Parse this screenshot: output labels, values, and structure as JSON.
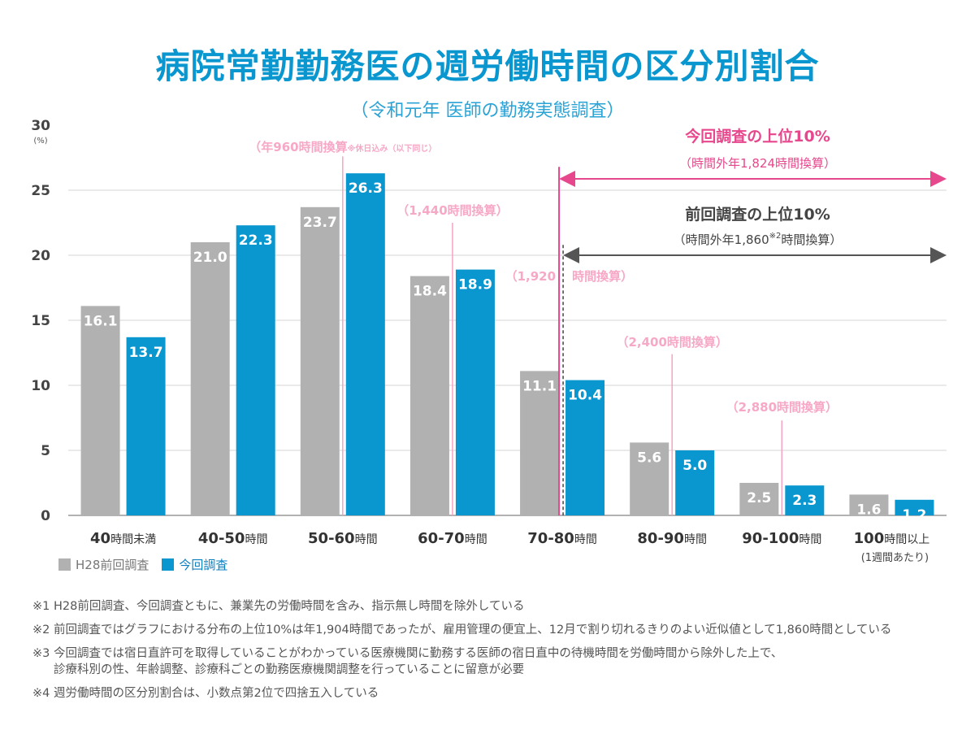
{
  "title": "病院常勤勤務医の週労働時間の区分別割合",
  "subtitle": "（令和元年 医師の勤務実態調査）",
  "chart_data": {
    "type": "bar",
    "title": "病院常勤勤務医の週労働時間の区分別割合",
    "ylabel": "(%)",
    "ylim": [
      0,
      30
    ],
    "yticks": [
      0,
      5,
      10,
      15,
      20,
      25,
      30
    ],
    "categories": [
      "40時間未満",
      "40-50時間",
      "50-60時間",
      "60-70時間",
      "70-80時間",
      "80-90時間",
      "90-100時間",
      "100時間以上"
    ],
    "category_note": "(1週間あたり)",
    "series": [
      {
        "name": "H28前回調査",
        "color": "#b1b1b1",
        "values": [
          16.1,
          21.0,
          23.7,
          18.4,
          11.1,
          5.6,
          2.5,
          1.6
        ]
      },
      {
        "name": "今回調査",
        "color": "#0a96cf",
        "values": [
          13.7,
          22.3,
          26.3,
          18.9,
          10.4,
          5.0,
          2.3,
          1.2
        ]
      }
    ],
    "annotations": {
      "a960": {
        "main": "（年960時間換算",
        "small": "※休日込み（以下同じ）",
        "at_category": 2.5
      },
      "a1440": {
        "text": "（1,440時間換算）",
        "at_category": 3.5
      },
      "a1920": {
        "left": "（1,920",
        "right": "時間換算）",
        "at_category": 4.5
      },
      "a2400": {
        "text": "（2,400時間換算）",
        "at_category": 5.5
      },
      "a2880": {
        "text": "（2,880時間換算）",
        "at_category": 6.5
      },
      "current_top10": {
        "title": "今回調査の上位10%",
        "sub": "（時間外年1,824時間換算）"
      },
      "previous_top10": {
        "title": "前回調査の上位10%",
        "sub_pre": "（時間外年1,860",
        "sup": "※2",
        "sub_post": "時間換算）"
      }
    }
  },
  "legend": {
    "previous": "H28前回調査",
    "current": "今回調査"
  },
  "notes": [
    {
      "text": "※1 H28前回調査、今回調査ともに、兼業先の労働時間を含み、指示無し時間を除外している"
    },
    {
      "text": "※2 前回調査ではグラフにおける分布の上位10%は年1,904時間であったが、雇用管理の便宜上、12月で割り切れるきりのよい近似値として1,860時間としている"
    },
    {
      "text": "※3 今回調査では宿日直許可を取得していることがわかっている医療機関に勤務する医師の宿日直中の待機時間を労働時間から除外した上で、",
      "cont": "診療科別の性、年齢調整、診療科ごとの勤務医療機関調整を行っていることに留意が必要"
    },
    {
      "text": "※4 週労働時間の区分別割合は、小数点第2位で四捨五入している"
    }
  ],
  "colors": {
    "pink": "#f5a3c3",
    "pink_text": "#f7a8c6",
    "magenta": "#e7478c",
    "dark": "#555555",
    "blue": "#0a96cf",
    "gray": "#b1b1b1"
  }
}
